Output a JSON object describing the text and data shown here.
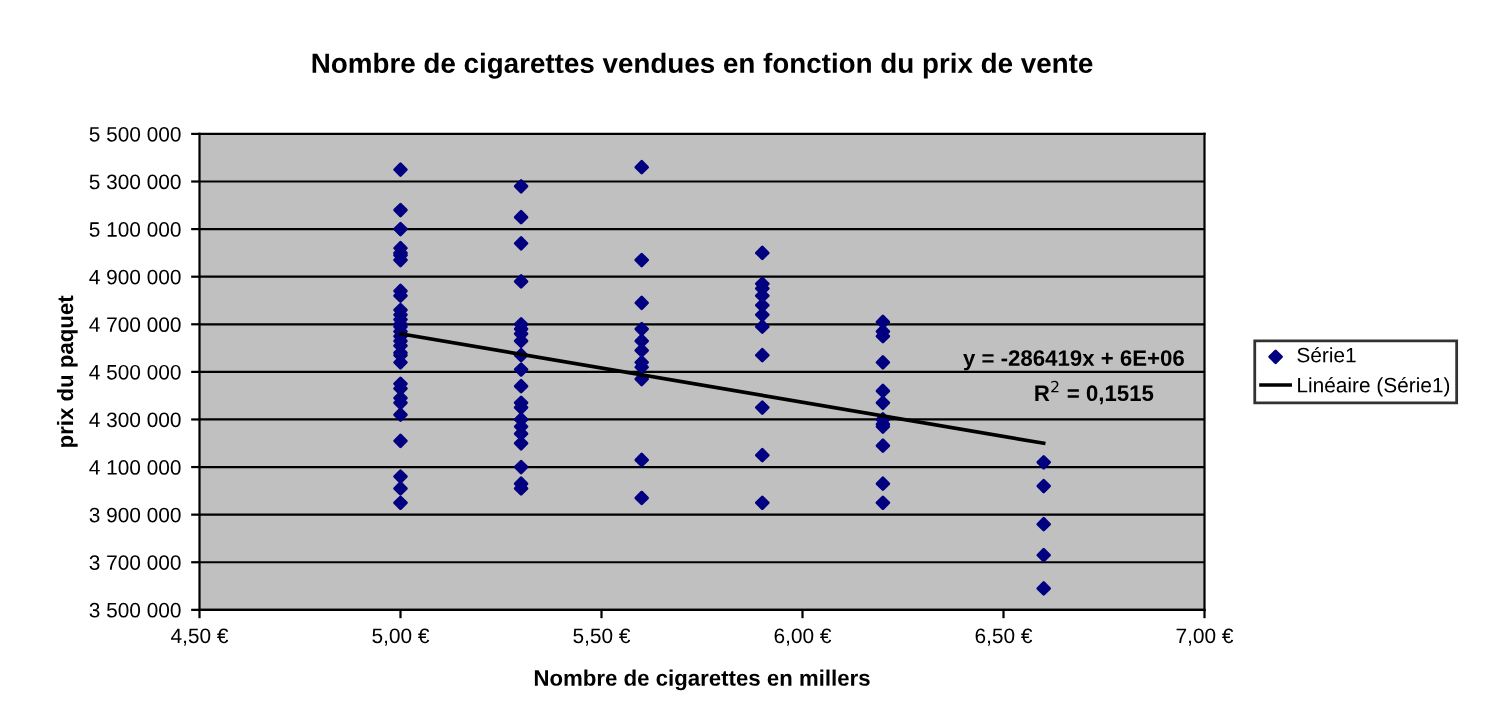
{
  "chart_data": {
    "type": "scatter",
    "title": "Nombre de cigarettes vendues en fonction du prix de vente",
    "xlabel": "Nombre de cigarettes en millers",
    "ylabel": "prix du paquet",
    "xlim": [
      4.5,
      7.0
    ],
    "xticks": [
      {
        "value": 4.5,
        "label": "4,50 €"
      },
      {
        "value": 5.0,
        "label": "5,00 €"
      },
      {
        "value": 5.5,
        "label": "5,50 €"
      },
      {
        "value": 6.0,
        "label": "6,00 €"
      },
      {
        "value": 6.5,
        "label": "6,50 €"
      },
      {
        "value": 7.0,
        "label": "7,00 €"
      }
    ],
    "ylim": [
      3500000,
      5500000
    ],
    "yticks": [
      {
        "value": 3500000,
        "label": "3 500 000"
      },
      {
        "value": 3700000,
        "label": "3 700 000"
      },
      {
        "value": 3900000,
        "label": "3 900 000"
      },
      {
        "value": 4100000,
        "label": "4 100 000"
      },
      {
        "value": 4300000,
        "label": "4 300 000"
      },
      {
        "value": 4500000,
        "label": "4 500 000"
      },
      {
        "value": 4700000,
        "label": "4 700 000"
      },
      {
        "value": 4900000,
        "label": "4 900 000"
      },
      {
        "value": 5100000,
        "label": "5 100 000"
      },
      {
        "value": 5300000,
        "label": "5 300 000"
      },
      {
        "value": 5500000,
        "label": "5 500 000"
      }
    ],
    "grid": "y",
    "legend": "right",
    "marker": "diamond",
    "series": [
      {
        "name": "Série1",
        "color": "#000080",
        "x": [
          5.0,
          5.0,
          5.0,
          5.0,
          5.0,
          5.0,
          5.0,
          5.0,
          5.0,
          5.0,
          5.0,
          5.0,
          5.0,
          5.0,
          5.0,
          5.0,
          5.0,
          5.0,
          5.0,
          5.0,
          5.0,
          5.0,
          5.0,
          5.0,
          5.0,
          5.0,
          5.0,
          5.0,
          5.0,
          5.0,
          5.3,
          5.3,
          5.3,
          5.3,
          5.3,
          5.3,
          5.3,
          5.3,
          5.3,
          5.3,
          5.3,
          5.3,
          5.3,
          5.3,
          5.3,
          5.3,
          5.3,
          5.3,
          5.3,
          5.3,
          5.6,
          5.6,
          5.6,
          5.6,
          5.6,
          5.6,
          5.6,
          5.6,
          5.6,
          5.6,
          5.6,
          5.9,
          5.9,
          5.9,
          5.9,
          5.9,
          5.9,
          5.9,
          5.9,
          5.9,
          5.9,
          5.9,
          6.2,
          6.2,
          6.2,
          6.2,
          6.2,
          6.2,
          6.2,
          6.2,
          6.2,
          6.2,
          6.2,
          6.2,
          6.6,
          6.6,
          6.6,
          6.6,
          6.6
        ],
        "values": [
          5350000,
          5180000,
          5100000,
          5020000,
          5000000,
          4990000,
          4970000,
          4840000,
          4820000,
          4760000,
          4740000,
          4720000,
          4700000,
          4690000,
          4670000,
          4650000,
          4630000,
          4610000,
          4580000,
          4570000,
          4540000,
          4450000,
          4430000,
          4390000,
          4370000,
          4320000,
          4210000,
          4060000,
          4010000,
          3950000,
          5280000,
          5150000,
          5040000,
          4880000,
          4700000,
          4680000,
          4660000,
          4630000,
          4570000,
          4510000,
          4440000,
          4370000,
          4350000,
          4300000,
          4270000,
          4240000,
          4200000,
          4100000,
          4030000,
          4010000,
          5360000,
          4970000,
          4790000,
          4680000,
          4630000,
          4590000,
          4540000,
          4520000,
          4470000,
          4130000,
          3970000,
          5000000,
          4870000,
          4850000,
          4820000,
          4780000,
          4740000,
          4690000,
          4570000,
          4350000,
          4150000,
          3950000,
          4710000,
          4670000,
          4650000,
          4540000,
          4420000,
          4370000,
          4300000,
          4280000,
          4270000,
          4190000,
          4030000,
          3950000,
          4120000,
          4020000,
          3860000,
          3730000,
          3590000
        ]
      },
      {
        "name": "Linéaire (Série1)",
        "type": "line",
        "color": "#000000",
        "marker": "none",
        "x": [
          5.0,
          6.6
        ],
        "values": [
          4660000,
          4200000
        ]
      }
    ],
    "annotations": [
      "y = -286419x + 6E+06",
      "R$^{2}$ = 0,1515"
    ]
  }
}
